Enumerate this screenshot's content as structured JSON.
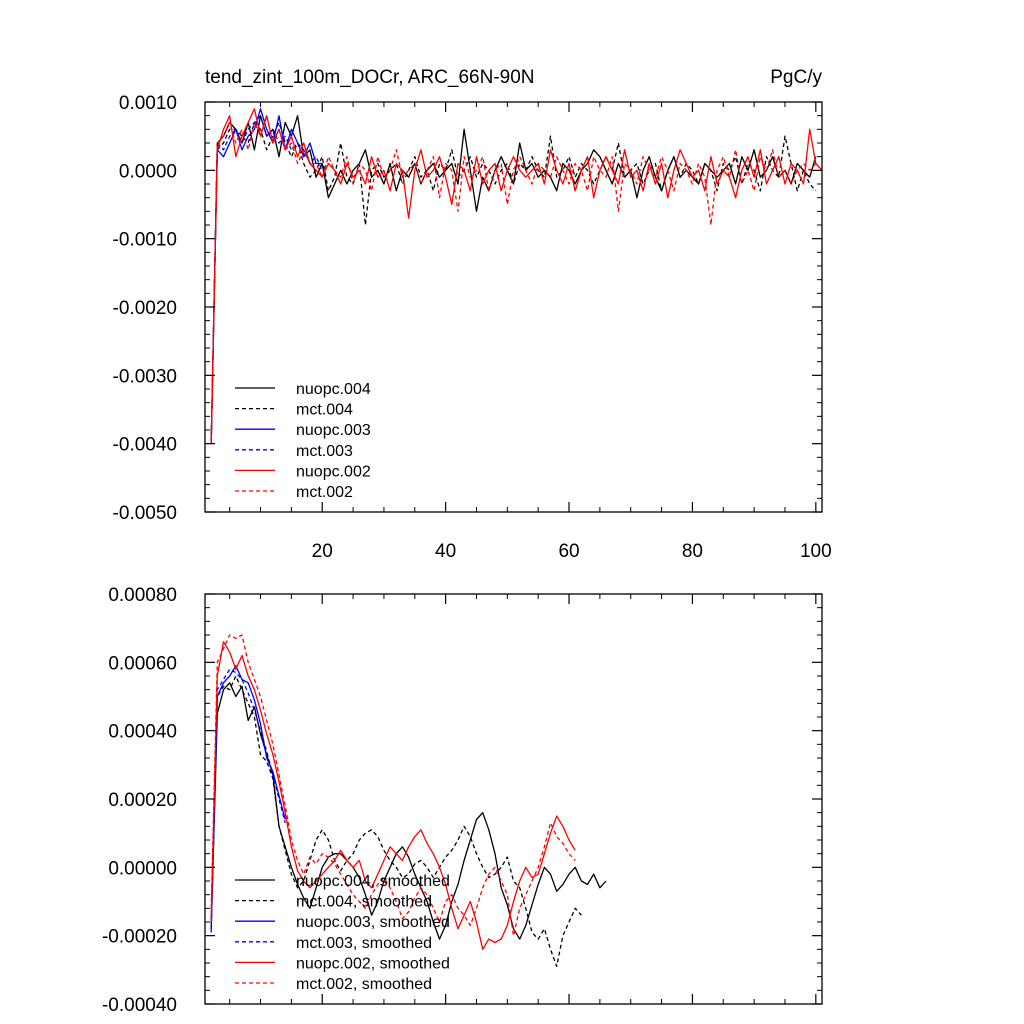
{
  "chart_data": [
    {
      "type": "line",
      "title_left": "tend_zint_100m_DOCr, ARC_66N-90N",
      "title_right": "PgC/y",
      "xlim": [
        1,
        101
      ],
      "ylim": [
        -0.005,
        0.001
      ],
      "xticks": [
        20,
        40,
        60,
        80,
        100
      ],
      "xtick_labels": [
        "20",
        "40",
        "60",
        "80",
        "100"
      ],
      "show_x_tick_labels": true,
      "yticks": [
        0.001,
        0.0,
        -0.001,
        -0.002,
        -0.003,
        -0.004,
        -0.005
      ],
      "ytick_labels": [
        "0.0010",
        "0.0000",
        "-0.0010",
        "-0.0020",
        "-0.0030",
        "-0.0040",
        "-0.0050"
      ],
      "legend": [
        "nuopc.004",
        "mct.004",
        "nuopc.003",
        "mct.003",
        "nuopc.002",
        "mct.002"
      ],
      "series": [
        {
          "name": "nuopc.004",
          "color": "#000000",
          "dash": "solid",
          "x_start": 2,
          "values": [
            -0.004,
            0.0004,
            0.0005,
            0.0007,
            0.0006,
            0.0004,
            0.0007,
            0.0003,
            0.0008,
            0.0005,
            0.0006,
            0.0002,
            0.0007,
            0.0005,
            0.0008,
            0.0002,
            0.0003,
            -0.0001,
            0.0001,
            -0.0004,
            -0.0002,
            0.0,
            -0.0002,
            0.0,
            0.0001,
            0.0003,
            -0.0001,
            0.0,
            -0.0002,
            0.0001,
            -0.0003,
            0.0,
            -0.0001,
            0.0001,
            -0.0002,
            0.0,
            0.0001,
            -0.0001,
            0.0,
            0.0001,
            -0.0002,
            0.0006,
            0.0,
            -0.0006,
            -0.0001,
            -0.0003,
            0.0,
            0.0002,
            0.0,
            -0.0002,
            0.0004,
            0.0,
            0.0001,
            -0.0001,
            0.0,
            -0.0001,
            -0.0003,
            0.0001,
            0.0,
            -0.0002,
            0.0,
            0.0001,
            0.0003,
            0.0002,
            0.0,
            -0.0002,
            0.0001,
            -0.0001,
            0.0,
            -0.0004,
            0.0,
            0.0002,
            -0.0001,
            -0.0003,
            0.0,
            0.0002,
            -0.0001,
            0.0,
            -0.0001,
            -0.0002,
            0.0001,
            0.0,
            -0.0001,
            0.0,
            0.0001,
            -0.0002,
            0.0002,
            0.0,
            0.0003,
            -0.0001,
            0.0,
            0.0002,
            -0.0001,
            0.0,
            -0.0002,
            0.0001,
            0.0,
            -0.0001,
            0.0002
          ]
        },
        {
          "name": "mct.004",
          "color": "#000000",
          "dash": "dashed",
          "x_start": 2,
          "values": [
            -0.004,
            0.0003,
            0.0004,
            0.0006,
            0.0006,
            0.0005,
            0.0004,
            0.0007,
            0.0006,
            0.0003,
            0.0005,
            0.0007,
            0.0004,
            0.0002,
            0.0004,
            0.0001,
            -0.0001,
            0.0,
            0.0002,
            -0.0003,
            -0.0001,
            0.0004,
            -0.0001,
            -0.0002,
            0.0001,
            -0.0008,
            0.0,
            0.0001,
            -0.0001,
            0.0,
            0.0001,
            -0.0002,
            0.0,
            0.0002,
            -0.0001,
            0.0,
            -0.0003,
            0.0001,
            0.0,
            0.0003,
            -0.0001,
            0.0,
            0.0002,
            -0.0001,
            0.0001,
            0.0,
            -0.0002,
            0.0,
            0.0001,
            -0.0002,
            0.0001,
            0.0,
            0.0002,
            0.0,
            -0.0001,
            0.0005,
            -0.0001,
            0.0,
            0.0002,
            -0.0001,
            0.0001,
            0.0,
            -0.0002,
            0.0,
            0.0002,
            0.0,
            0.0004,
            -0.0001,
            0.0,
            0.0001,
            -0.0002,
            0.0,
            0.0001,
            -0.0003,
            0.0,
            0.0002,
            -0.0001,
            0.0001,
            0.0,
            -0.0002,
            0.0001,
            0.0,
            -0.0003,
            0.0001,
            0.0,
            0.0002,
            -0.0002,
            0.0001,
            0.0,
            -0.0003,
            0.0002,
            0.0,
            -0.0001,
            0.0005,
            0.0001,
            -0.0003,
            0.0,
            -0.0002,
            -0.0003
          ]
        },
        {
          "name": "nuopc.003",
          "color": "#0000ff",
          "dash": "solid",
          "x_start": 2,
          "values": [
            -0.004,
            0.0003,
            0.0002,
            0.0004,
            0.0006,
            0.0003,
            0.0005,
            0.0006,
            0.0009,
            0.0006,
            0.0004,
            0.0008,
            0.0003,
            0.0006,
            0.0004,
            0.0002,
            0.0004,
            0.0001,
            0.0001
          ]
        },
        {
          "name": "mct.003",
          "color": "#0000ff",
          "dash": "dashed",
          "x_start": 2,
          "values": [
            -0.004,
            0.0004,
            0.0003,
            0.0005,
            0.0006,
            0.0004,
            0.0006,
            0.0007,
            0.0008,
            0.0005,
            0.0006,
            0.0004,
            0.0005,
            0.0003,
            0.0004,
            0.0003,
            0.0001,
            0.0002,
            0.0
          ]
        },
        {
          "name": "nuopc.002",
          "color": "#ff0000",
          "dash": "solid",
          "x_start": 2,
          "values": [
            -0.004,
            0.0003,
            0.0006,
            0.0008,
            0.0002,
            0.0005,
            0.0007,
            0.0009,
            0.0005,
            0.0008,
            0.0004,
            0.0006,
            0.0003,
            0.0005,
            0.0002,
            0.0004,
            0.0001,
            0.0,
            -0.0001,
            0.0001,
            0.0,
            -0.0002,
            0.0001,
            -0.0001,
            0.0,
            -0.0002,
            0.0002,
            -0.0001,
            0.0,
            -0.0003,
            0.0001,
            0.0,
            -0.0007,
            0.0,
            0.0003,
            -0.0001,
            0.0,
            0.0002,
            -0.0001,
            -0.0005,
            0.0001,
            0.0,
            -0.0003,
            0.0002,
            -0.0002,
            0.0,
            0.0001,
            -0.0003,
            0.0,
            0.0002,
            0.0,
            -0.0001,
            0.0,
            0.0001,
            -0.0002,
            0.0003,
            0.0,
            -0.0002,
            0.0001,
            -0.0003,
            0.0,
            0.0002,
            -0.0004,
            0.0,
            0.0002,
            0.0,
            -0.0002,
            0.0003,
            -0.0001,
            0.0,
            -0.0003,
            0.0001,
            -0.0002,
            0.0001,
            -0.0004,
            0.0,
            0.0003,
            0.0001,
            -0.0001,
            0.0,
            -0.0003,
            0.0002,
            -0.0002,
            0.0,
            -0.0001,
            -0.0004,
            0.0,
            0.0002,
            -0.0001,
            0.0003,
            -0.0002,
            0.0,
            0.0002,
            -0.0002,
            0.0001,
            0.0,
            -0.0002,
            0.0006,
            0.0001,
            0.0
          ]
        },
        {
          "name": "mct.002",
          "color": "#ff0000",
          "dash": "dashed",
          "x_start": 2,
          "values": [
            -0.004,
            0.0004,
            0.0005,
            0.0007,
            0.0004,
            0.0006,
            0.0003,
            0.0007,
            0.0005,
            0.0008,
            0.0004,
            0.0006,
            0.0003,
            0.0004,
            0.0001,
            0.0003,
            0.0001,
            0.0001,
            -0.0001,
            0.0002,
            0.0,
            -0.0001,
            0.0002,
            -0.0002,
            0.0001,
            0.0,
            -0.0003,
            0.0002,
            -0.0001,
            0.0,
            0.0003,
            -0.0001,
            0.0,
            0.0001,
            -0.0002,
            0.0,
            0.0002,
            -0.0004,
            0.0001,
            0.0,
            -0.0006,
            0.0002,
            -0.0001,
            0.0,
            0.0002,
            -0.0003,
            0.0,
            0.0001,
            -0.0005,
            0.0,
            0.0002,
            0.0,
            -0.0002,
            0.0001,
            0.0,
            -0.0001,
            0.0002,
            0.0,
            -0.0002,
            0.0001,
            0.0,
            -0.0003,
            0.0002,
            0.0,
            -0.0001,
            0.0002,
            -0.0006,
            0.0001,
            0.0,
            -0.0002,
            0.0002,
            0.0,
            -0.0001,
            0.0002,
            0.0,
            -0.0003,
            0.0001,
            0.0,
            -0.0002,
            0.0001,
            -0.0001,
            -0.0008,
            0.0,
            0.0002,
            -0.0001,
            0.0003,
            -0.0002,
            0.0,
            -0.0003,
            0.0002,
            0.0,
            0.0003,
            -0.0001,
            0.0,
            -0.0002,
            0.0,
            0.0001,
            0.0,
            0.0001
          ]
        }
      ]
    },
    {
      "type": "line",
      "xlim": [
        1,
        101
      ],
      "ylim": [
        -0.0004,
        0.0008
      ],
      "xticks": [
        20,
        40,
        60,
        80,
        100
      ],
      "show_x_tick_labels": false,
      "yticks": [
        0.0008,
        0.0006,
        0.0004,
        0.0002,
        0.0,
        -0.0002,
        -0.0004
      ],
      "ytick_labels": [
        "0.00080",
        "0.00060",
        "0.00040",
        "0.00020",
        "0.00000",
        "-0.00020",
        "-0.00040"
      ],
      "legend": [
        "nuopc.004, smoothed",
        "mct.004, smoothed",
        "nuopc.003, smoothed",
        "mct.003, smoothed",
        "nuopc.002, smoothed",
        "mct.002, smoothed"
      ],
      "series": [
        {
          "name": "nuopc.004, smoothed",
          "color": "#000000",
          "dash": "solid",
          "x_start": 2,
          "values": [
            -0.00018,
            0.00045,
            0.00052,
            0.00054,
            0.0005,
            0.00053,
            0.00043,
            0.00047,
            0.00039,
            0.00033,
            0.00027,
            0.00012,
            6e-05,
            0.0,
            -5e-05,
            -9e-05,
            -0.00012,
            -6e-05,
            0.0,
            3e-05,
            4e-05,
            4e-05,
            2e-05,
            0.0,
            -3e-05,
            -8e-05,
            -0.00014,
            -0.0001,
            -4e-05,
            0.0,
            4e-05,
            6e-05,
            3e-05,
            -2e-05,
            -6e-05,
            -0.0001,
            -0.00016,
            -0.00021,
            -0.00017,
            -0.0001,
            -5e-05,
            2e-05,
            8e-05,
            0.00014,
            0.00016,
            0.00011,
            4e-05,
            -6e-05,
            -0.00011,
            -0.00018,
            -0.00021,
            -0.00017,
            -0.00011,
            -5e-05,
            0.0,
            -2e-05,
            -7e-05,
            -5e-05,
            -2e-05,
            0.0,
            -4e-05,
            -5e-05,
            -2e-05,
            -6e-05,
            -4e-05
          ]
        },
        {
          "name": "mct.004, smoothed",
          "color": "#000000",
          "dash": "dashed",
          "x_start": 2,
          "values": [
            -0.00015,
            0.0005,
            0.00053,
            0.00052,
            0.00056,
            0.00052,
            0.00048,
            0.00044,
            0.00033,
            0.00031,
            0.00026,
            0.00012,
            5e-05,
            -2e-05,
            -6e-05,
            -4e-05,
            2e-05,
            8e-05,
            0.00011,
            8e-05,
            2e-05,
            -1e-05,
            2e-05,
            4e-05,
            8e-05,
            0.0001,
            0.00011,
            9e-05,
            5e-05,
            2e-05,
            0.0,
            -3e-05,
            -2e-05,
            1e-05,
            2e-05,
            0.0,
            -3e-05,
            0.0,
            3e-05,
            5e-05,
            8e-05,
            0.00012,
            9e-05,
            4e-05,
            0.0,
            -3e-05,
            -2e-05,
            0.0,
            3e-05,
            -4e-05,
            -6e-05,
            -0.00012,
            -0.00019,
            -0.00021,
            -0.00018,
            -0.00024,
            -0.00029,
            -0.0002,
            -0.00016,
            -0.00012,
            -0.00014
          ]
        },
        {
          "name": "nuopc.003, smoothed",
          "color": "#0000ff",
          "dash": "solid",
          "x_start": 2,
          "values": [
            -0.00019,
            0.0005,
            0.00054,
            0.00056,
            0.00059,
            0.00055,
            0.00054,
            0.00049,
            0.00042,
            0.00032,
            0.00028,
            0.00021,
            0.00014
          ]
        },
        {
          "name": "mct.003, smoothed",
          "color": "#0000ff",
          "dash": "dashed",
          "x_start": 2,
          "values": [
            -0.00016,
            0.00052,
            0.00055,
            0.00058,
            0.00057,
            0.00055,
            0.00051,
            0.00046,
            0.0004,
            0.00034,
            0.00027,
            0.0002,
            0.00013
          ]
        },
        {
          "name": "nuopc.002, smoothed",
          "color": "#ff0000",
          "dash": "solid",
          "x_start": 2,
          "values": [
            -0.00016,
            0.00056,
            0.00066,
            0.00063,
            0.00058,
            0.00062,
            0.00056,
            0.00052,
            0.00046,
            0.00039,
            0.00033,
            0.00025,
            0.00016,
            6e-05,
            -1e-05,
            -4e-05,
            -6e-05,
            -4e-05,
            -2e-05,
            0.0,
            2e-05,
            5e-05,
            2e-05,
            0.0,
            2e-05,
            -4e-05,
            -6e-05,
            -2e-05,
            2e-05,
            6e-05,
            4e-05,
            2e-05,
            6e-05,
            9e-05,
            0.00011,
            7e-05,
            4e-05,
            0.0,
            -5e-05,
            -0.00012,
            -0.00018,
            -0.00014,
            -0.0001,
            -0.00016,
            -0.00024,
            -0.00021,
            -0.00022,
            -0.00021,
            -0.00017,
            -0.0001,
            -4e-05,
            0.0,
            -3e-05,
            -2e-05,
            4e-05,
            0.0001,
            0.00015,
            0.00012,
            8e-05,
            5e-05
          ]
        },
        {
          "name": "mct.002, smoothed",
          "color": "#ff0000",
          "dash": "dashed",
          "x_start": 2,
          "values": [
            -0.00012,
            0.0006,
            0.00064,
            0.00068,
            0.00067,
            0.00068,
            0.0006,
            0.00055,
            0.0005,
            0.00043,
            0.00036,
            0.00027,
            0.00018,
            8e-05,
            2e-05,
            -2e-05,
            3e-05,
            1e-05,
            4e-05,
            3e-05,
            1e-05,
            -2e-05,
            -5e-05,
            -8e-05,
            -0.0001,
            -0.00012,
            -8e-05,
            -5e-05,
            -3e-05,
            -6e-05,
            -0.0001,
            -0.00015,
            -0.00013,
            -9e-05,
            -6e-05,
            -8e-05,
            -0.00012,
            -0.00016,
            -0.0001,
            -8e-05,
            -0.00012,
            -0.00014,
            -0.00017,
            -0.00012,
            -6e-05,
            -2e-05,
            0.0,
            -4e-05,
            -8e-05,
            -0.0002,
            -0.00012,
            -8e-05,
            -4e-05,
            0.0,
            6e-05,
            0.00013,
            9e-05,
            7e-05,
            4e-05,
            2e-05
          ]
        }
      ]
    }
  ]
}
